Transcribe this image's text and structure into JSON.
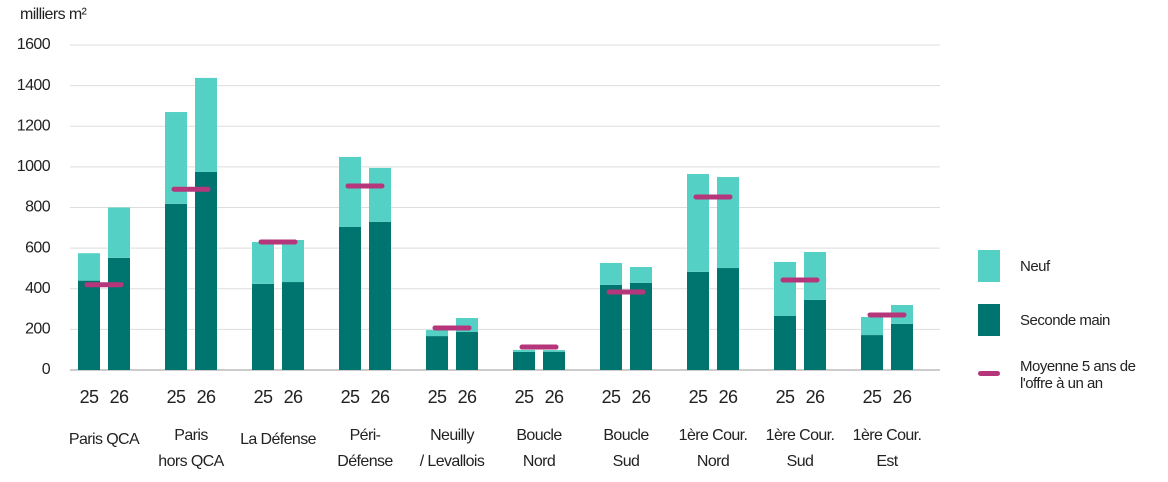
{
  "chart_data": {
    "type": "grouped-stacked-bar",
    "y_label": "milliers m²",
    "ylim": [
      0,
      1600
    ],
    "yticks": [
      0,
      200,
      400,
      600,
      800,
      1000,
      1200,
      1400,
      1600
    ],
    "grid": true,
    "bar_labels": [
      "25",
      "26"
    ],
    "categories": [
      [
        "Paris QCA"
      ],
      [
        "Paris",
        "hors QCA"
      ],
      [
        "La Défense"
      ],
      [
        "Péri-",
        "Défense"
      ],
      [
        "Neuilly",
        "/ Levallois"
      ],
      [
        "Boucle",
        "Nord"
      ],
      [
        "Boucle",
        "Sud"
      ],
      [
        "1ère Cour.",
        "Nord"
      ],
      [
        "1ère Cour.",
        "Sud"
      ],
      [
        "1ère Cour.",
        "Est"
      ]
    ],
    "series": [
      {
        "name": "Seconde main",
        "color": "#00756f",
        "values": [
          [
            440,
            552
          ],
          [
            818,
            975
          ],
          [
            424,
            433
          ],
          [
            704,
            729
          ],
          [
            167,
            187
          ],
          [
            89,
            90
          ],
          [
            419,
            429
          ],
          [
            483,
            502
          ],
          [
            266,
            345
          ],
          [
            172,
            227
          ]
        ]
      },
      {
        "name": "Neuf",
        "color": "#55d0c5",
        "values": [
          [
            135,
            248
          ],
          [
            452,
            463
          ],
          [
            206,
            207
          ],
          [
            345,
            266
          ],
          [
            30,
            69
          ],
          [
            10,
            8
          ],
          [
            108,
            78
          ],
          [
            482,
            448
          ],
          [
            266,
            236
          ],
          [
            89,
            93
          ]
        ]
      },
      {
        "name": "Moyenne 5 ans de l'offre à un an",
        "color": "#b5367a",
        "kind": "marker",
        "values": [
          420,
          890,
          630,
          906,
          207,
          113,
          384,
          852,
          443,
          271
        ]
      }
    ],
    "legend_order": [
      1,
      0,
      2
    ]
  }
}
